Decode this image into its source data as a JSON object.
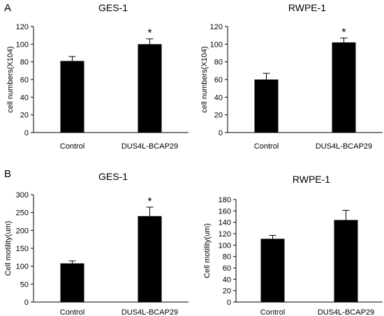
{
  "panel_labels": [
    "A",
    "B"
  ],
  "chart_data": [
    {
      "type": "bar",
      "title": "GES-1",
      "xlabel": "",
      "ylabel": "cell numbers(X104)",
      "categories": [
        "Control",
        "DUS4L-BCAP29"
      ],
      "values": [
        81,
        100
      ],
      "errors": [
        5,
        6
      ],
      "significance": [
        "",
        "*"
      ],
      "ylim": [
        0,
        120
      ],
      "yticks": [
        0,
        20,
        40,
        60,
        80,
        100,
        120
      ],
      "grid": false,
      "bar_color": "#000000"
    },
    {
      "type": "bar",
      "title": "RWPE-1",
      "xlabel": "",
      "ylabel": "cell numbers(X104)",
      "categories": [
        "Control",
        "DUS4L-BCAP29"
      ],
      "values": [
        60,
        102
      ],
      "errors": [
        7,
        5
      ],
      "significance": [
        "",
        "*"
      ],
      "ylim": [
        0,
        120
      ],
      "yticks": [
        0,
        20,
        40,
        60,
        80,
        100,
        120
      ],
      "grid": false,
      "bar_color": "#000000"
    },
    {
      "type": "bar",
      "title": "GES-1",
      "xlabel": "",
      "ylabel": "Cell motility(um)",
      "categories": [
        "Control",
        "DUS4L-BCAP29"
      ],
      "values": [
        108,
        240
      ],
      "errors": [
        7,
        25
      ],
      "significance": [
        "",
        "*"
      ],
      "ylim": [
        0,
        300
      ],
      "yticks": [
        0,
        50,
        100,
        150,
        200,
        250,
        300
      ],
      "grid": false,
      "bar_color": "#000000"
    },
    {
      "type": "bar",
      "title": "RWPE-1",
      "xlabel": "",
      "ylabel": "Cell motility(um)",
      "categories": [
        "Control",
        "DUS4L-BCAP29"
      ],
      "values": [
        111,
        144
      ],
      "errors": [
        6,
        17
      ],
      "significance": [
        "",
        ""
      ],
      "ylim": [
        0,
        180
      ],
      "yticks": [
        0,
        20,
        40,
        60,
        80,
        100,
        120,
        140,
        160,
        180
      ],
      "grid": false,
      "bar_color": "#000000"
    }
  ]
}
